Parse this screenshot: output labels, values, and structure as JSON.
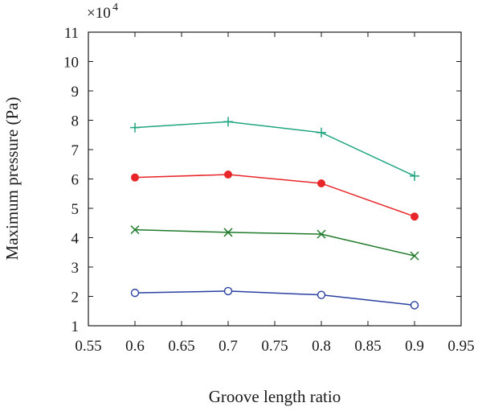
{
  "chart_data": {
    "type": "line",
    "xlabel": "Groove length ratio",
    "ylabel": "Maximum pressure (Pa)",
    "y_multiplier_base": "×10",
    "y_multiplier_exp": "4",
    "xlim": [
      0.55,
      0.95
    ],
    "ylim": [
      1,
      11
    ],
    "xticks": [
      0.55,
      0.6,
      0.65,
      0.7,
      0.75,
      0.8,
      0.85,
      0.9,
      0.95
    ],
    "xtick_labels": [
      "0.55",
      "0.6",
      "0.65",
      "0.7",
      "0.75",
      "0.8",
      "0.85",
      "0.9",
      "0.95"
    ],
    "yticks": [
      1,
      2,
      3,
      4,
      5,
      6,
      7,
      8,
      9,
      10,
      11
    ],
    "ytick_labels": [
      "1",
      "2",
      "3",
      "4",
      "5",
      "6",
      "7",
      "8",
      "9",
      "10",
      "11"
    ],
    "grid": false,
    "x": [
      0.6,
      0.7,
      0.8,
      0.9
    ],
    "series": [
      {
        "color": "#1fa57f",
        "marker": "plus",
        "values": [
          7.75,
          7.95,
          7.58,
          6.1
        ]
      },
      {
        "color": "#e8262a",
        "marker": "filled-circle",
        "values": [
          6.05,
          6.15,
          5.85,
          4.72
        ]
      },
      {
        "color": "#1f7a2a",
        "marker": "x",
        "values": [
          4.27,
          4.18,
          4.12,
          3.38
        ]
      },
      {
        "color": "#2a3fa0",
        "marker": "open-circle",
        "values": [
          2.12,
          2.18,
          2.05,
          1.7
        ]
      }
    ]
  }
}
